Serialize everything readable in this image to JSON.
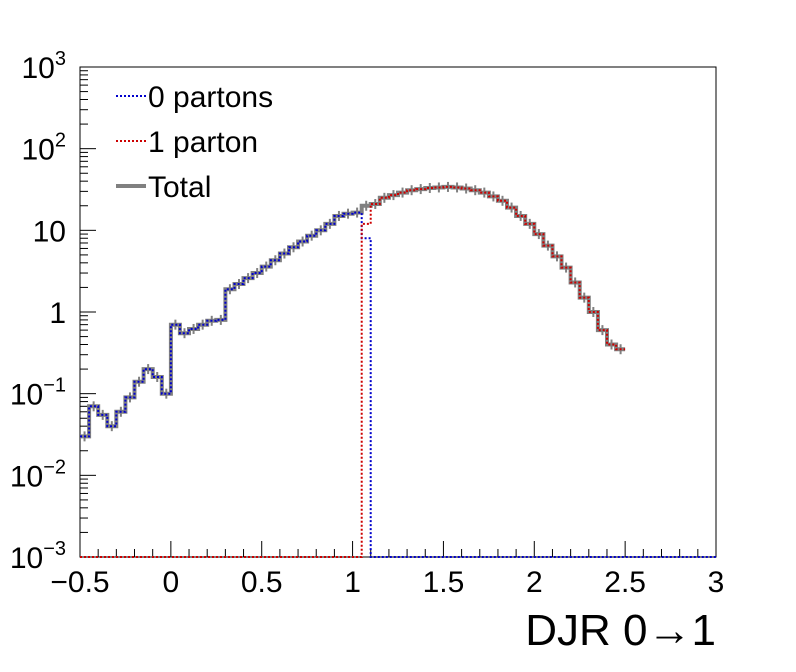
{
  "chart_data": {
    "type": "line",
    "title": "",
    "xlabel": "DJR 0→1",
    "ylabel": "",
    "xlim": [
      -0.5,
      3
    ],
    "ylim": [
      0.001,
      1000
    ],
    "y_scale": "log",
    "grid": false,
    "legend_position": "top-left",
    "x_ticks": [
      {
        "value": -0.5,
        "label": "−0.5"
      },
      {
        "value": 0,
        "label": "0"
      },
      {
        "value": 0.5,
        "label": "0.5"
      },
      {
        "value": 1,
        "label": "1"
      },
      {
        "value": 1.5,
        "label": "1.5"
      },
      {
        "value": 2,
        "label": "2"
      },
      {
        "value": 2.5,
        "label": "2.5"
      },
      {
        "value": 3,
        "label": "3"
      }
    ],
    "y_ticks": [
      {
        "value": 0.001,
        "base": "10",
        "exp": "−3"
      },
      {
        "value": 0.01,
        "base": "10",
        "exp": "−2"
      },
      {
        "value": 0.1,
        "base": "10",
        "exp": "−1"
      },
      {
        "value": 1,
        "base": "1",
        "exp": ""
      },
      {
        "value": 10,
        "base": "10",
        "exp": ""
      },
      {
        "value": 100,
        "base": "10",
        "exp": "2"
      },
      {
        "value": 1000,
        "base": "10",
        "exp": "3"
      }
    ],
    "bin_width": 0.05,
    "series": [
      {
        "name": "0 partons",
        "color": "#0000cc",
        "style": "dotted",
        "x_start": -0.5,
        "values": [
          0.03,
          0.07,
          0.055,
          0.04,
          0.06,
          0.09,
          0.14,
          0.2,
          0.16,
          0.1,
          0.7,
          0.55,
          0.62,
          0.7,
          0.78,
          0.8,
          1.9,
          2.2,
          2.6,
          3.0,
          3.6,
          4.3,
          5.2,
          6.2,
          7.3,
          8.6,
          10,
          12,
          15,
          16,
          16.5,
          8,
          0.001,
          0.001,
          0.001,
          0.001,
          0.001,
          0.001,
          0.001,
          0.001,
          0.001,
          0.001,
          0.001,
          0.001,
          0.001,
          0.001,
          0.001,
          0.001,
          0.001,
          0.001,
          0.001,
          0.001,
          0.001,
          0.001,
          0.001,
          0.001,
          0.001,
          0.001,
          0.001,
          0.001,
          0.001,
          0.001,
          0.001,
          0.001,
          0.001,
          0.001,
          0.001,
          0.001,
          0.001,
          0.001
        ]
      },
      {
        "name": "1 parton",
        "color": "#cc0000",
        "style": "dotted",
        "x_start": -0.5,
        "values": [
          0.001,
          0.001,
          0.001,
          0.001,
          0.001,
          0.001,
          0.001,
          0.001,
          0.001,
          0.001,
          0.001,
          0.001,
          0.001,
          0.001,
          0.001,
          0.001,
          0.001,
          0.001,
          0.001,
          0.001,
          0.001,
          0.001,
          0.001,
          0.001,
          0.001,
          0.001,
          0.001,
          0.001,
          0.001,
          0.001,
          0.001,
          12,
          21,
          25,
          27,
          29,
          31,
          32,
          33,
          33.5,
          34,
          33.5,
          32.5,
          31,
          29,
          26,
          23,
          19,
          15,
          12,
          9,
          6.5,
          4.8,
          3.5,
          2.3,
          1.5,
          1.0,
          0.6,
          0.4,
          0.35
        ]
      },
      {
        "name": "Total",
        "color": "#808080",
        "style": "solid",
        "x_start": -0.5,
        "values": [
          0.03,
          0.07,
          0.055,
          0.04,
          0.06,
          0.09,
          0.14,
          0.2,
          0.16,
          0.1,
          0.7,
          0.55,
          0.62,
          0.7,
          0.78,
          0.8,
          1.9,
          2.2,
          2.6,
          3.0,
          3.6,
          4.3,
          5.2,
          6.2,
          7.3,
          8.6,
          10,
          12,
          15,
          16,
          16.5,
          20,
          21,
          25,
          27,
          29,
          31,
          32,
          33,
          33.5,
          34,
          33.5,
          32.5,
          31,
          29,
          26,
          23,
          19,
          15,
          12,
          9,
          6.5,
          4.8,
          3.5,
          2.3,
          1.5,
          1.0,
          0.6,
          0.4,
          0.35
        ]
      }
    ]
  }
}
